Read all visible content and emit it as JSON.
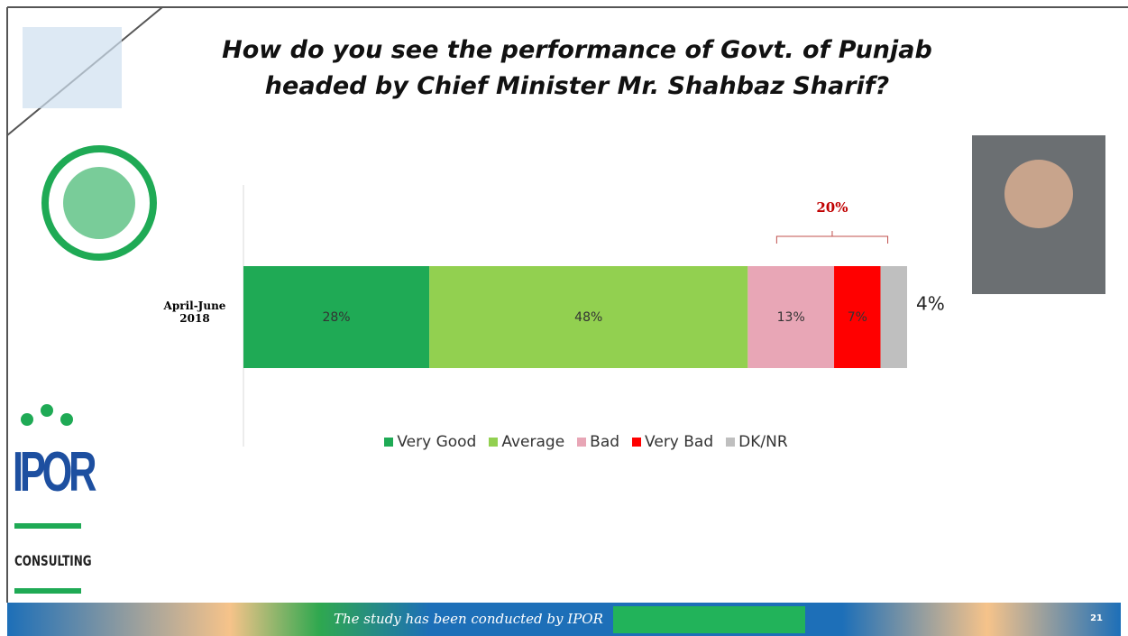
{
  "chart_data": {
    "type": "stacked-bar-horizontal",
    "title": "How do you see the performance of Govt. of Punjab headed by Chief Minister Mr. Shahbaz Sharif?",
    "categories": [
      "April-June 2018"
    ],
    "series": [
      {
        "name": "Very Good",
        "color": "#1faa55",
        "values": [
          28
        ],
        "value_labels": [
          "28%"
        ]
      },
      {
        "name": "Average",
        "color": "#92d050",
        "values": [
          48
        ],
        "value_labels": [
          "48%"
        ]
      },
      {
        "name": "Bad",
        "color": "#e8a6b6",
        "values": [
          13
        ],
        "value_labels": [
          "13%"
        ]
      },
      {
        "name": "Very Bad",
        "color": "#ff0000",
        "values": [
          7
        ],
        "value_labels": [
          "7%"
        ]
      },
      {
        "name": "DK/NR",
        "color": "#bfbfbf",
        "values": [
          4
        ],
        "value_labels": [
          "4%"
        ]
      }
    ],
    "annotations": [
      {
        "value": 20,
        "label": "20%"
      }
    ]
  },
  "logo": {
    "name": "IPOR",
    "subtitle": "CONSULTING"
  },
  "footer": {
    "text": "The study has been conducted by IPOR",
    "page": "21"
  }
}
